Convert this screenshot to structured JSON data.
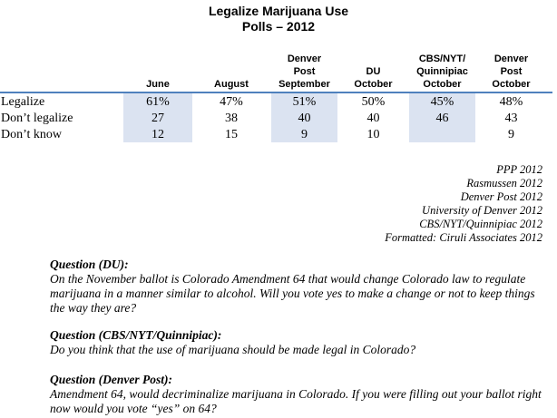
{
  "title": "Legalize Marijuana Use",
  "subtitle": "Polls – 2012",
  "columns": [
    {
      "lines": [
        "",
        "",
        "June"
      ]
    },
    {
      "lines": [
        "",
        "",
        "August"
      ]
    },
    {
      "lines": [
        "Denver",
        "Post",
        "September"
      ]
    },
    {
      "lines": [
        "",
        "DU",
        "October"
      ]
    },
    {
      "lines": [
        "CBS/NYT/",
        "Quinnipiac",
        "October"
      ]
    },
    {
      "lines": [
        "Denver",
        "Post",
        "October"
      ]
    }
  ],
  "rows": [
    {
      "label": "Legalize",
      "values": [
        "61%",
        "47%",
        "51%",
        "50%",
        "45%",
        "48%"
      ]
    },
    {
      "label": "Don’t legalize",
      "values": [
        "27",
        "38",
        "40",
        "40",
        "46",
        "43"
      ]
    },
    {
      "label": "Don’t know",
      "values": [
        "12",
        "15",
        "9",
        "10",
        "",
        "9"
      ]
    }
  ],
  "sources": [
    "PPP 2012",
    "Rasmussen 2012",
    "Denver Post 2012",
    "University of Denver 2012",
    "CBS/NYT/Quinnipiac 2012",
    "Formatted: Ciruli Associates 2012"
  ],
  "questions": [
    {
      "heading": "Question (DU):",
      "text": "On the November ballot is Colorado Amendment 64 that would change Colorado law to regulate marijuana in a manner similar to alcohol.  Will you vote yes to make a change or not to keep things the way they are?"
    },
    {
      "heading": "Question (CBS/NYT/Quinnipiac):",
      "text": "Do you think that the use of marijuana should be made legal in Colorado?"
    },
    {
      "heading": "Question (Denver Post):",
      "text": "Amendment 64, would decriminalize marijuana in Colorado.  If you were filling out your ballot right now would you vote “yes” on 64?"
    }
  ],
  "colors": {
    "shade": "#dbe3f1",
    "rule": "#4f81bd"
  }
}
